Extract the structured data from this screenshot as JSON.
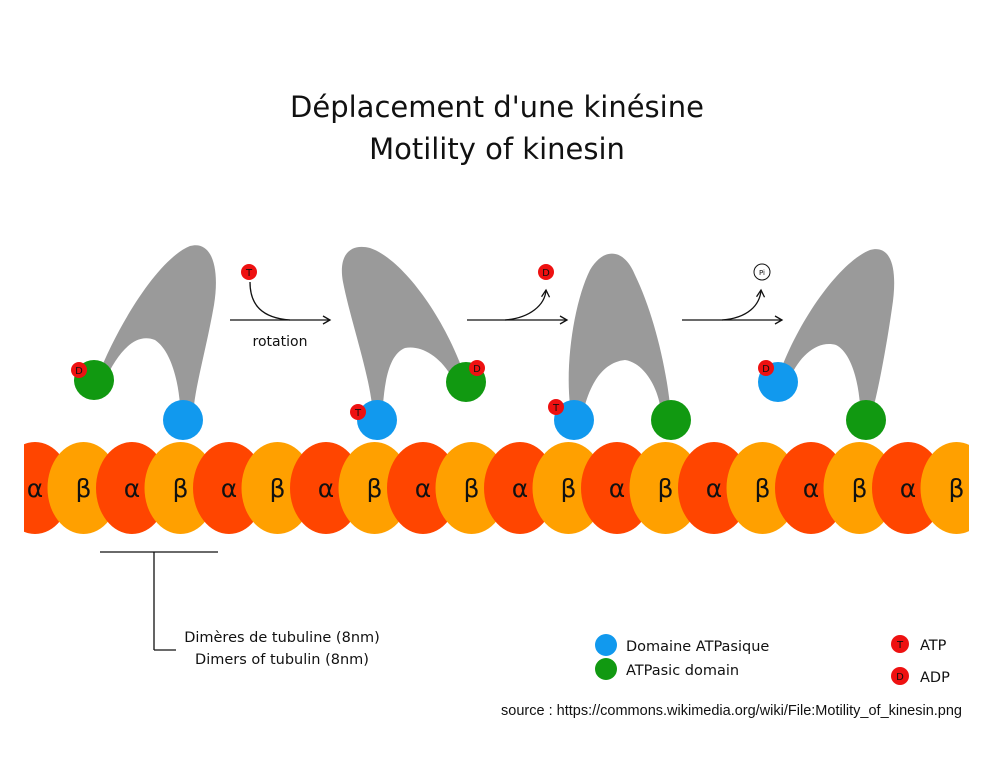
{
  "title": {
    "line1": "Déplacement d'une kinésine",
    "line2": "Motility of kinesin"
  },
  "microtubule": {
    "labels": [
      "α",
      "β",
      "α",
      "β",
      "α",
      "β",
      "α",
      "β",
      "α",
      "β",
      "α",
      "β",
      "α",
      "β",
      "α",
      "β",
      "α",
      "β",
      "α",
      "β"
    ],
    "alpha_color": "#ff4500",
    "beta_color": "#ffa000"
  },
  "kinesin": {
    "stalk_color": "#9a9a9a",
    "blue_domain_color": "#1199ee",
    "green_domain_color": "#119911"
  },
  "steps": [
    {
      "arrow_molecule": "T",
      "arrow_label": "rotation"
    },
    {
      "arrow_molecule": "D",
      "arrow_label": ""
    },
    {
      "arrow_molecule": "Pi",
      "arrow_label": ""
    }
  ],
  "nucleotides": {
    "atp": "T",
    "adp": "D",
    "pi": "Pi",
    "color": "#ee1111"
  },
  "dimer_note": {
    "line1": "Dimères de tubuline (8nm)",
    "line2": "Dimers of tubulin (8nm)"
  },
  "legend": {
    "blue_line1": "Domaine ATPasique",
    "green_line2": "ATPasic domain",
    "atp_label": "ATP",
    "adp_label": "ADP"
  },
  "source": "source : https://commons.wikimedia.org/wiki/File:Motility_of_kinesin.png"
}
